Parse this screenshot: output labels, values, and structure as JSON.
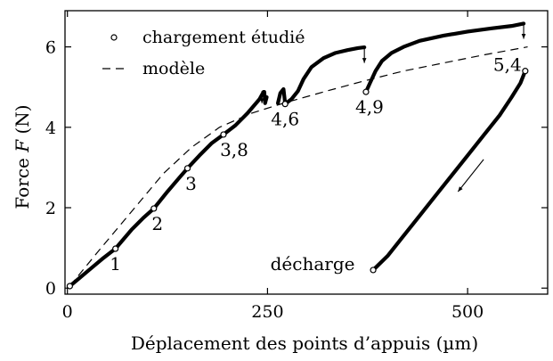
{
  "chart_data": {
    "type": "line",
    "xlabel": "Déplacement des points d’appuis (µm)",
    "ylabel_prefix": "Force ",
    "ylabel_var": "F",
    "ylabel_suffix": " (N)",
    "xlim": [
      -3,
      600
    ],
    "ylim": [
      -0.15,
      6.9
    ],
    "xticks": [
      0,
      250,
      500
    ],
    "xtick_labels": [
      "0",
      "250",
      "500"
    ],
    "yticks": [
      0,
      2,
      4,
      6
    ],
    "ytick_labels": [
      "0",
      "2",
      "4",
      "6"
    ],
    "grid": false,
    "legend_position": "top-left",
    "legend": [
      {
        "label": "chargement étudié",
        "marker": "circle"
      },
      {
        "label": "modèle",
        "style": "dashed"
      }
    ],
    "series": [
      {
        "name": "chargement étudié",
        "style": "thick-solid",
        "segments": [
          [
            [
              3,
              0.05
            ],
            [
              15,
              0.25
            ],
            [
              30,
              0.5
            ],
            [
              45,
              0.75
            ],
            [
              60,
              0.98
            ],
            [
              80,
              1.45
            ],
            [
              95,
              1.75
            ],
            [
              108,
              1.98
            ],
            [
              125,
              2.4
            ],
            [
              140,
              2.75
            ],
            [
              150,
              2.98
            ],
            [
              165,
              3.3
            ],
            [
              180,
              3.6
            ],
            [
              195,
              3.82
            ],
            [
              210,
              4.05
            ],
            [
              225,
              4.35
            ],
            [
              240,
              4.7
            ],
            [
              245,
              4.88
            ]
          ],
          [
            [
              246,
              4.88
            ],
            [
              247,
              4.6
            ],
            [
              249,
              4.75
            ]
          ],
          [
            [
              263,
              4.6
            ],
            [
              266,
              4.85
            ],
            [
              270,
              4.95
            ],
            [
              272,
              4.6
            ]
          ],
          [
            [
              272,
              4.58
            ],
            [
              280,
              4.7
            ],
            [
              288,
              4.9
            ],
            [
              295,
              5.2
            ],
            [
              305,
              5.5
            ],
            [
              320,
              5.72
            ],
            [
              335,
              5.85
            ],
            [
              350,
              5.92
            ],
            [
              363,
              5.97
            ],
            [
              371,
              5.99
            ]
          ],
          [
            [
              373,
              4.88
            ],
            [
              378,
              5.1
            ],
            [
              385,
              5.4
            ],
            [
              393,
              5.65
            ],
            [
              405,
              5.85
            ],
            [
              420,
              6.0
            ],
            [
              440,
              6.15
            ],
            [
              470,
              6.28
            ],
            [
              500,
              6.38
            ],
            [
              530,
              6.46
            ],
            [
              555,
              6.52
            ],
            [
              570,
              6.58
            ]
          ],
          [
            [
              382,
              0.45
            ],
            [
              400,
              0.8
            ],
            [
              420,
              1.3
            ],
            [
              440,
              1.8
            ],
            [
              460,
              2.3
            ],
            [
              480,
              2.8
            ],
            [
              500,
              3.3
            ],
            [
              520,
              3.8
            ],
            [
              540,
              4.3
            ],
            [
              555,
              4.75
            ],
            [
              566,
              5.1
            ],
            [
              572,
              5.4
            ]
          ]
        ]
      },
      {
        "name": "modèle",
        "style": "dashed",
        "points": [
          [
            3,
            0.05
          ],
          [
            40,
            0.95
          ],
          [
            80,
            1.9
          ],
          [
            120,
            2.85
          ],
          [
            155,
            3.5
          ],
          [
            190,
            4.0
          ],
          [
            230,
            4.35
          ],
          [
            270,
            4.6
          ],
          [
            320,
            4.88
          ],
          [
            370,
            5.15
          ],
          [
            420,
            5.4
          ],
          [
            470,
            5.6
          ],
          [
            520,
            5.8
          ],
          [
            575,
            6.0
          ]
        ]
      }
    ],
    "markers": [
      [
        3,
        0.05
      ],
      [
        60,
        0.98
      ],
      [
        108,
        1.98
      ],
      [
        150,
        2.98
      ],
      [
        195,
        3.82
      ],
      [
        272,
        4.58
      ],
      [
        373,
        4.88
      ],
      [
        382,
        0.45
      ],
      [
        572,
        5.4
      ]
    ],
    "annotations": [
      {
        "text": "1",
        "x": 60,
        "y": 0.98
      },
      {
        "text": "2",
        "x": 108,
        "y": 1.98
      },
      {
        "text": "3",
        "x": 150,
        "y": 2.98
      },
      {
        "text": "3,8",
        "x": 195,
        "y": 3.82
      },
      {
        "text": "4,6",
        "x": 272,
        "y": 4.58
      },
      {
        "text": "4,9",
        "x": 373,
        "y": 4.88
      },
      {
        "text": "5,4",
        "x": 572,
        "y": 5.4
      },
      {
        "text": "décharge",
        "x": 382,
        "y": 0.45
      }
    ],
    "arrows": [
      {
        "from": [
          371,
          5.99
        ],
        "to": [
          371,
          5.6
        ]
      },
      {
        "from": [
          570,
          6.58
        ],
        "to": [
          570,
          6.2
        ]
      },
      {
        "from": [
          243,
          4.9
        ],
        "to": [
          243,
          4.6
        ]
      },
      {
        "from": [
          520,
          3.2
        ],
        "to": [
          488,
          2.4
        ]
      }
    ]
  }
}
